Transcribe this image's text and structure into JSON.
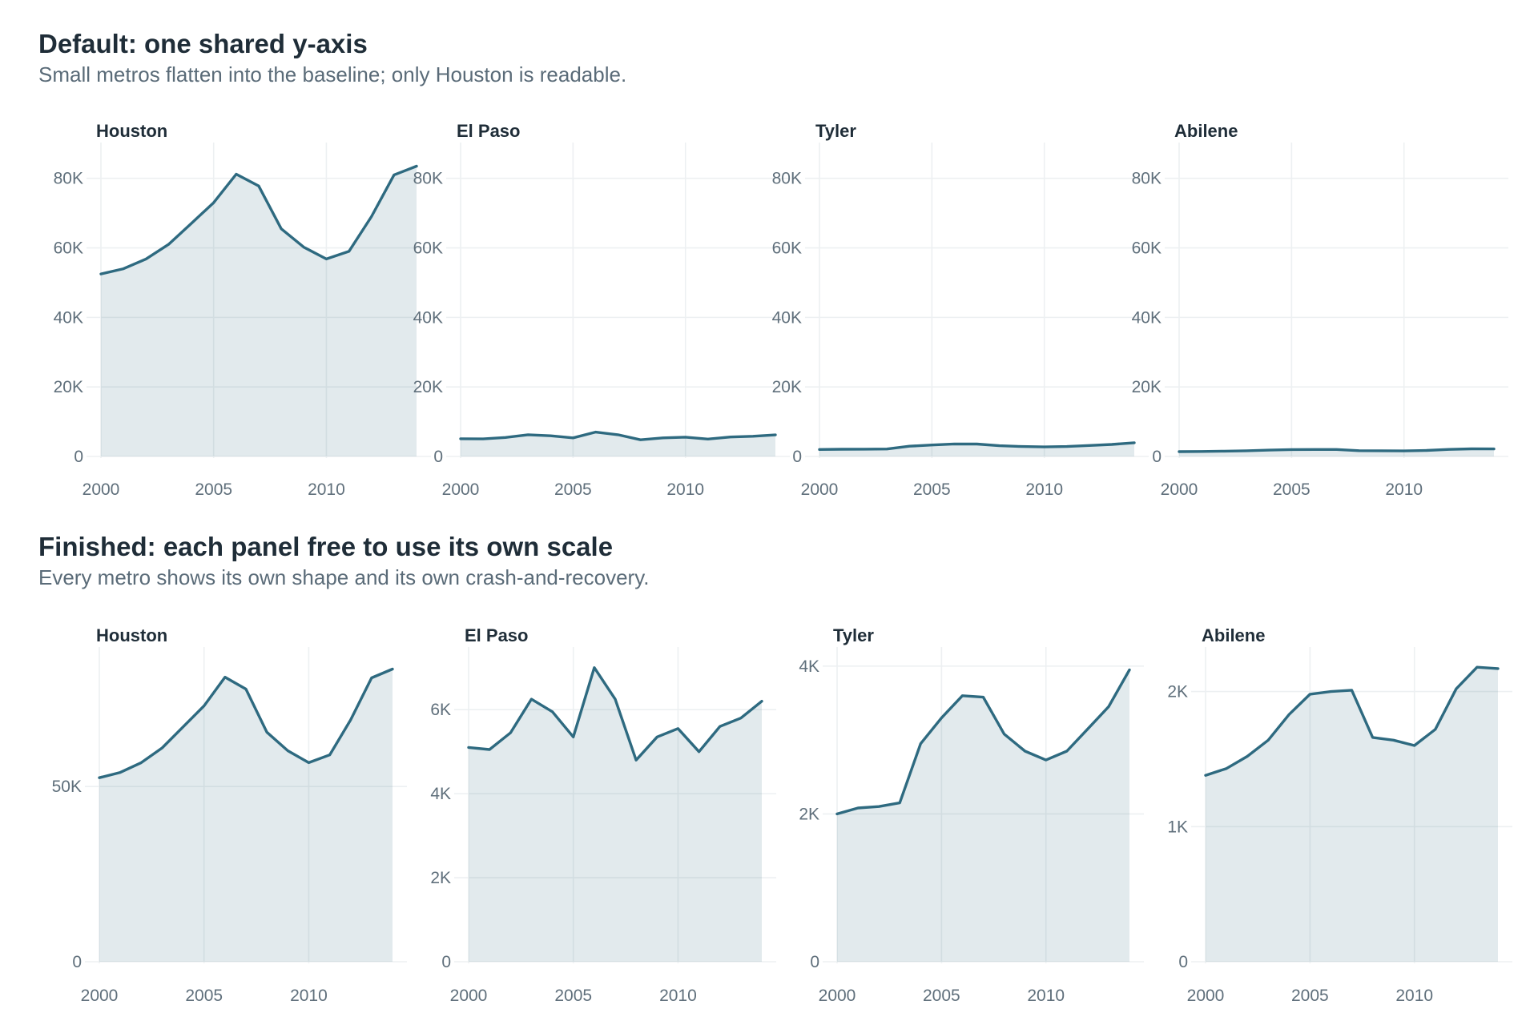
{
  "sections": [
    {
      "title": "Default: one shared y-axis",
      "subtitle": "Small metros flatten into the baseline; only Houston is readable."
    },
    {
      "title": "Finished: each panel free to use its own scale",
      "subtitle": "Every metro shows its own shape and its own crash-and-recovery."
    }
  ],
  "chart_data": [
    {
      "type": "area",
      "title": "Default: one shared y-axis",
      "subtitle": "Small metros flatten into the baseline; only Houston is readable.",
      "x": [
        2000,
        2001,
        2002,
        2003,
        2004,
        2005,
        2006,
        2007,
        2008,
        2009,
        2010,
        2011,
        2012,
        2013,
        2014
      ],
      "x_ticks": [
        {
          "value": 2000,
          "label": "2000"
        },
        {
          "value": 2005,
          "label": "2005"
        },
        {
          "value": 2010,
          "label": "2010"
        }
      ],
      "xlim": [
        2000,
        2014
      ],
      "shared_y": true,
      "ylim": [
        0,
        88000
      ],
      "y_ticks": [
        {
          "value": 0,
          "label": "0"
        },
        {
          "value": 20000,
          "label": "20K"
        },
        {
          "value": 40000,
          "label": "40K"
        },
        {
          "value": 60000,
          "label": "60K"
        },
        {
          "value": 80000,
          "label": "80K"
        }
      ],
      "grid": true,
      "color": "#2e6a80",
      "panels": [
        {
          "name": "Houston",
          "values": [
            52500,
            54000,
            56800,
            61000,
            67000,
            73000,
            81200,
            77800,
            65500,
            60200,
            56800,
            59000,
            69000,
            81000,
            83500
          ]
        },
        {
          "name": "El Paso",
          "values": [
            5100,
            5050,
            5450,
            6250,
            5950,
            5350,
            7000,
            6250,
            4800,
            5350,
            5550,
            5000,
            5600,
            5800,
            6200
          ]
        },
        {
          "name": "Tyler",
          "values": [
            2000,
            2080,
            2100,
            2150,
            2950,
            3300,
            3600,
            3580,
            3080,
            2850,
            2730,
            2850,
            3150,
            3450,
            3950
          ]
        },
        {
          "name": "Abilene",
          "values": [
            1380,
            1430,
            1520,
            1640,
            1830,
            1980,
            2000,
            2010,
            1660,
            1640,
            1600,
            1720,
            2020,
            2180,
            2170
          ]
        }
      ]
    },
    {
      "type": "area",
      "title": "Finished: each panel free to use its own scale",
      "subtitle": "Every metro shows its own shape and its own crash-and-recovery.",
      "x": [
        2000,
        2001,
        2002,
        2003,
        2004,
        2005,
        2006,
        2007,
        2008,
        2009,
        2010,
        2011,
        2012,
        2013,
        2014
      ],
      "x_ticks": [
        {
          "value": 2000,
          "label": "2000"
        },
        {
          "value": 2005,
          "label": "2005"
        },
        {
          "value": 2010,
          "label": "2010"
        }
      ],
      "xlim": [
        2000,
        2014
      ],
      "shared_y": false,
      "grid": true,
      "color": "#2e6a80",
      "panels": [
        {
          "name": "Houston",
          "values": [
            52500,
            54000,
            56800,
            61000,
            67000,
            73000,
            81200,
            77800,
            65500,
            60200,
            56800,
            59000,
            69000,
            81000,
            83500
          ],
          "ylim": [
            0,
            87500
          ],
          "y_ticks": [
            {
              "value": 0,
              "label": "0"
            },
            {
              "value": 50000,
              "label": "50K"
            }
          ]
        },
        {
          "name": "El Paso",
          "values": [
            5100,
            5050,
            5450,
            6250,
            5950,
            5350,
            7000,
            6250,
            4800,
            5350,
            5550,
            5000,
            5600,
            5800,
            6200
          ],
          "ylim": [
            0,
            7300
          ],
          "y_ticks": [
            {
              "value": 0,
              "label": "0"
            },
            {
              "value": 2000,
              "label": "2K"
            },
            {
              "value": 4000,
              "label": "4K"
            },
            {
              "value": 6000,
              "label": "6K"
            }
          ]
        },
        {
          "name": "Tyler",
          "values": [
            2000,
            2080,
            2100,
            2150,
            2950,
            3300,
            3600,
            3580,
            3080,
            2850,
            2730,
            2850,
            3150,
            3450,
            3950
          ],
          "ylim": [
            0,
            4150
          ],
          "y_ticks": [
            {
              "value": 0,
              "label": "0"
            },
            {
              "value": 2000,
              "label": "2K"
            },
            {
              "value": 4000,
              "label": "4K"
            }
          ]
        },
        {
          "name": "Abilene",
          "values": [
            1380,
            1430,
            1520,
            1640,
            1830,
            1980,
            2000,
            2010,
            1660,
            1640,
            1600,
            1720,
            2020,
            2180,
            2170
          ],
          "ylim": [
            0,
            2270
          ],
          "y_ticks": [
            {
              "value": 0,
              "label": "0"
            },
            {
              "value": 1000,
              "label": "1K"
            },
            {
              "value": 2000,
              "label": "2K"
            }
          ]
        }
      ]
    }
  ]
}
